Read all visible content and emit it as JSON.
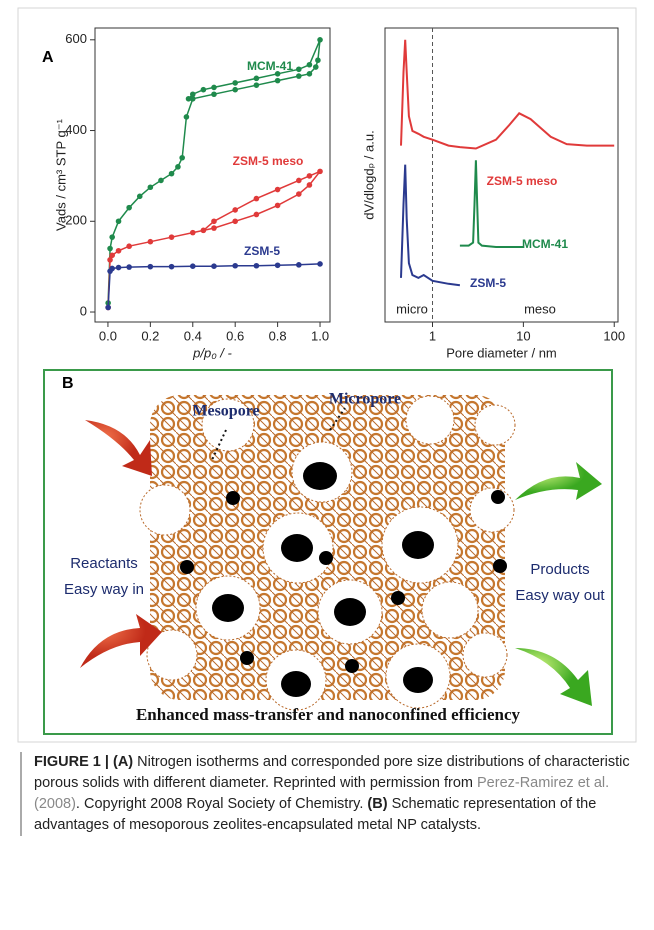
{
  "panel_labels": {
    "a": "A",
    "b": "B"
  },
  "chart_data": [
    {
      "type": "line",
      "markers": true,
      "xscale": "linear",
      "xlabel": "p/p₀ / -",
      "ylabel": "Vads / cm³ STP g⁻¹",
      "xlim": [
        -0.061,
        1.047
      ],
      "ylim": [
        -22,
        626
      ],
      "xticks": [
        {
          "value": 0,
          "label": "0.0"
        },
        0.2,
        0.4,
        0.6,
        0.8,
        {
          "value": 1,
          "label": "1.0"
        }
      ],
      "yticks": [
        0,
        200,
        400,
        600
      ],
      "series": [
        {
          "name": "MCM-41",
          "color": "#1f8a4c",
          "x": [
            0.001,
            0.01,
            0.02,
            0.05,
            0.1,
            0.15,
            0.2,
            0.25,
            0.3,
            0.33,
            0.35,
            0.37,
            0.4,
            0.5,
            0.6,
            0.7,
            0.8,
            0.9,
            0.95,
            0.98,
            0.99,
            1.0,
            0.95,
            0.9,
            0.8,
            0.7,
            0.6,
            0.5,
            0.45,
            0.4,
            0.38
          ],
          "values": [
            20,
            140,
            165,
            200,
            230,
            255,
            275,
            290,
            305,
            320,
            340,
            430,
            470,
            480,
            490,
            500,
            510,
            520,
            525,
            540,
            555,
            600,
            545,
            535,
            525,
            515,
            505,
            495,
            490,
            480,
            470
          ]
        },
        {
          "name": "ZSM-5 meso",
          "color": "#e03a3a",
          "x": [
            0.001,
            0.01,
            0.02,
            0.05,
            0.1,
            0.2,
            0.3,
            0.4,
            0.5,
            0.6,
            0.7,
            0.8,
            0.9,
            0.95,
            1.0,
            0.95,
            0.9,
            0.8,
            0.7,
            0.6,
            0.5,
            0.45
          ],
          "values": [
            10,
            115,
            125,
            135,
            145,
            155,
            165,
            175,
            185,
            200,
            215,
            235,
            260,
            280,
            310,
            300,
            290,
            270,
            250,
            225,
            200,
            180
          ]
        },
        {
          "name": "ZSM-5",
          "color": "#2b3a8f",
          "x": [
            0.001,
            0.01,
            0.02,
            0.05,
            0.1,
            0.2,
            0.3,
            0.4,
            0.5,
            0.6,
            0.7,
            0.8,
            0.9,
            1.0
          ],
          "values": [
            10,
            90,
            96,
            98,
            99,
            100,
            100,
            101,
            101,
            102,
            102,
            103,
            104,
            106
          ]
        }
      ]
    },
    {
      "type": "line",
      "markers": false,
      "xscale": "log",
      "xlabel": "Pore diameter / nm",
      "ylabel": "dV/dlogdₚ / a.u.",
      "xlim": [
        0.3,
        110
      ],
      "ylim": [
        0,
        10
      ],
      "xticks": [
        1,
        10,
        100
      ],
      "divider_x": 1,
      "regions": [
        "micro",
        "meso"
      ],
      "series": [
        {
          "name": "ZSM-5 meso",
          "color": "#e03a3a",
          "x": [
            0.45,
            0.48,
            0.5,
            0.52,
            0.55,
            0.6,
            0.7,
            0.8,
            1,
            1.5,
            2,
            3,
            5,
            7,
            9,
            12,
            20,
            30,
            50,
            100
          ],
          "values": [
            6.0,
            8.5,
            9.6,
            8.5,
            7.0,
            6.5,
            6.4,
            6.3,
            6.2,
            6.0,
            5.95,
            5.9,
            6.2,
            6.7,
            7.1,
            6.9,
            6.3,
            6.05,
            6.0,
            6.0
          ]
        },
        {
          "name": "MCM-41",
          "color": "#1f8a4c",
          "x": [
            2,
            2.5,
            2.8,
            2.9,
            3,
            3.1,
            3.2,
            3.5,
            5,
            10
          ],
          "values": [
            2.6,
            2.6,
            2.7,
            4,
            5.5,
            4,
            2.7,
            2.6,
            2.55,
            2.55
          ]
        },
        {
          "name": "ZSM-5",
          "color": "#2b3a8f",
          "x": [
            0.45,
            0.48,
            0.5,
            0.52,
            0.55,
            0.6,
            0.7,
            0.8,
            1,
            1.5,
            2
          ],
          "values": [
            1.5,
            4,
            5.35,
            3.5,
            2.0,
            1.6,
            1.5,
            1.6,
            1.4,
            1.3,
            1.25
          ]
        }
      ]
    }
  ],
  "schematic": {
    "mesopore": "Mesopore",
    "micropore": "Micropore",
    "reactants": "Reactants",
    "way_in": "Easy way in",
    "products": "Products",
    "way_out": "Easy way out",
    "footer": "Enhanced mass-transfer and nanoconfined efficiency"
  },
  "caption": {
    "figure_label": "FIGURE 1 |",
    "a_label": "(A)",
    "text_a": "Nitrogen isotherms and corresponded pore size distributions of characteristic porous solids with different diameter. Reprinted with permission from",
    "citation": "Perez-Ramirez et al. (2008)",
    "text_a2": ". Copyright 2008 Royal Society of Chemistry.",
    "b_label": "(B)",
    "text_b": "Schematic representation of the advantages of mesoporous zeolites-encapsulated metal NP catalysts."
  }
}
